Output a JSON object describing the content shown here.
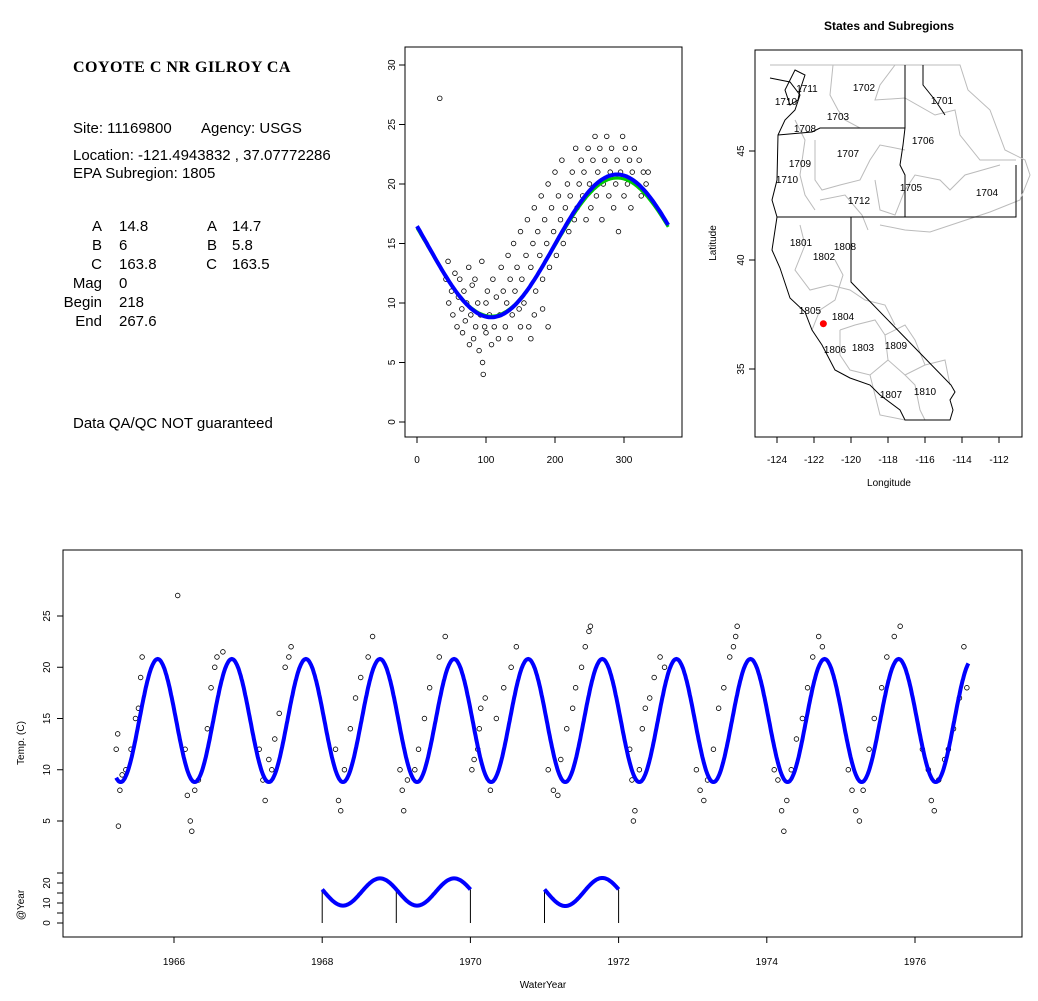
{
  "info": {
    "title": "COYOTE C NR GILROY CA",
    "site": "Site: 11169800",
    "agency": "Agency: USGS",
    "location": "Location: -121.4943832 , 37.07772286",
    "subregion": "EPA Subregion: 1805",
    "params_left": [
      [
        "A",
        "14.8"
      ],
      [
        "B",
        "6"
      ],
      [
        "C",
        "163.8"
      ],
      [
        "Mag",
        "0"
      ],
      [
        "Begin",
        "218"
      ],
      [
        "End",
        "267.6"
      ]
    ],
    "params_right": [
      [
        "A",
        "14.7"
      ],
      [
        "B",
        "5.8"
      ],
      [
        "C",
        "163.5"
      ]
    ],
    "disclaimer": "Data QA/QC NOT guaranteed",
    "disclaimer_color": "#b22222"
  },
  "chart_data": [
    {
      "type": "scatter",
      "name": "day-of-year scatter",
      "xlim": [
        0,
        365
      ],
      "ylim": [
        0,
        30
      ],
      "xticks": [
        "0",
        "100",
        "200",
        "300"
      ],
      "yticks": [
        "0",
        "5",
        "10",
        "15",
        "20",
        "25",
        "30"
      ],
      "fits": [
        {
          "name": "fit1",
          "color": "#0000ff",
          "A": 14.8,
          "B": 6.0,
          "peak_day": 290
        },
        {
          "name": "fit2",
          "color": "#00cc00",
          "A": 14.7,
          "B": 5.8,
          "peak_day": 290
        }
      ],
      "points": [
        [
          33,
          27.2
        ],
        [
          42,
          12
        ],
        [
          45,
          13.5
        ],
        [
          46,
          10
        ],
        [
          50,
          11
        ],
        [
          52,
          9
        ],
        [
          55,
          12.5
        ],
        [
          58,
          8
        ],
        [
          60,
          10.5
        ],
        [
          62,
          12
        ],
        [
          65,
          9.5
        ],
        [
          66,
          7.5
        ],
        [
          68,
          11
        ],
        [
          70,
          8.5
        ],
        [
          72,
          10
        ],
        [
          75,
          13
        ],
        [
          76,
          6.5
        ],
        [
          78,
          9
        ],
        [
          80,
          11.5
        ],
        [
          82,
          7
        ],
        [
          84,
          12
        ],
        [
          85,
          8
        ],
        [
          88,
          10
        ],
        [
          90,
          6
        ],
        [
          92,
          9
        ],
        [
          94,
          13.5
        ],
        [
          95,
          5
        ],
        [
          96,
          4
        ],
        [
          98,
          8
        ],
        [
          100,
          7.5
        ],
        [
          100,
          10
        ],
        [
          102,
          11
        ],
        [
          105,
          9
        ],
        [
          108,
          6.5
        ],
        [
          110,
          12
        ],
        [
          112,
          8
        ],
        [
          115,
          10.5
        ],
        [
          118,
          7
        ],
        [
          120,
          9
        ],
        [
          122,
          13
        ],
        [
          125,
          11
        ],
        [
          128,
          8
        ],
        [
          130,
          10
        ],
        [
          132,
          14
        ],
        [
          135,
          12
        ],
        [
          135,
          7
        ],
        [
          138,
          9
        ],
        [
          140,
          15
        ],
        [
          142,
          11
        ],
        [
          145,
          13
        ],
        [
          148,
          9.5
        ],
        [
          150,
          16
        ],
        [
          150,
          8
        ],
        [
          152,
          12
        ],
        [
          155,
          10
        ],
        [
          158,
          14
        ],
        [
          160,
          17
        ],
        [
          162,
          8
        ],
        [
          165,
          13
        ],
        [
          165,
          7
        ],
        [
          168,
          15
        ],
        [
          170,
          18
        ],
        [
          170,
          9
        ],
        [
          172,
          11
        ],
        [
          175,
          16
        ],
        [
          178,
          14
        ],
        [
          180,
          19
        ],
        [
          182,
          12
        ],
        [
          182,
          9.5
        ],
        [
          185,
          17
        ],
        [
          188,
          15
        ],
        [
          190,
          20
        ],
        [
          190,
          8
        ],
        [
          192,
          13
        ],
        [
          195,
          18
        ],
        [
          198,
          16
        ],
        [
          200,
          21
        ],
        [
          202,
          14
        ],
        [
          205,
          19
        ],
        [
          208,
          17
        ],
        [
          210,
          22
        ],
        [
          212,
          15
        ],
        [
          215,
          18
        ],
        [
          218,
          20
        ],
        [
          220,
          16
        ],
        [
          222,
          19
        ],
        [
          225,
          21
        ],
        [
          228,
          17
        ],
        [
          230,
          23
        ],
        [
          232,
          18
        ],
        [
          235,
          20
        ],
        [
          238,
          22
        ],
        [
          240,
          19
        ],
        [
          242,
          21
        ],
        [
          245,
          17
        ],
        [
          248,
          23
        ],
        [
          250,
          20
        ],
        [
          252,
          18
        ],
        [
          255,
          22
        ],
        [
          258,
          24
        ],
        [
          260,
          19
        ],
        [
          262,
          21
        ],
        [
          265,
          23
        ],
        [
          268,
          17
        ],
        [
          270,
          20
        ],
        [
          272,
          22
        ],
        [
          275,
          24
        ],
        [
          278,
          19
        ],
        [
          280,
          21
        ],
        [
          282,
          23
        ],
        [
          285,
          18
        ],
        [
          288,
          20
        ],
        [
          290,
          22
        ],
        [
          292,
          16
        ],
        [
          295,
          21
        ],
        [
          298,
          24
        ],
        [
          300,
          19
        ],
        [
          302,
          23
        ],
        [
          305,
          20
        ],
        [
          308,
          22
        ],
        [
          310,
          18
        ],
        [
          312,
          21
        ],
        [
          315,
          23
        ],
        [
          318,
          20
        ],
        [
          322,
          22
        ],
        [
          325,
          19
        ],
        [
          328,
          21
        ],
        [
          332,
          20
        ],
        [
          335,
          21
        ]
      ]
    },
    {
      "type": "map",
      "title": "States and Subregions",
      "xlabel": "Longitude",
      "ylabel": "Latitude",
      "xticks": [
        "-124",
        "-122",
        "-120",
        "-118",
        "-116",
        "-114",
        "-112"
      ],
      "yticks": [
        "35",
        "40",
        "45"
      ],
      "site": {
        "lon": -121.4943832,
        "lat": 37.07772286,
        "color": "#ff0000"
      },
      "regions": [
        "1711",
        "1710",
        "1702",
        "1701",
        "1703",
        "1708",
        "1706",
        "1707",
        "1709",
        "1710",
        "1705",
        "1704",
        "1712",
        "1801",
        "1808",
        "1802",
        "1805",
        "1804",
        "1806",
        "1803",
        "1809",
        "1807",
        "1810"
      ]
    },
    {
      "type": "line",
      "name": "time series",
      "xlabel": "WaterYear",
      "ylabel": "Temp. (C)",
      "ylabel2": "@Year",
      "xlim": [
        1964.7,
        1977.3
      ],
      "ylim": [
        3,
        30
      ],
      "xticks": [
        "1966",
        "1968",
        "1970",
        "1972",
        "1974",
        "1976"
      ],
      "yticks": [
        "5",
        "10",
        "15",
        "20",
        "25"
      ],
      "yticks2": [
        "0",
        "10",
        "20"
      ],
      "fit": {
        "color": "#0000ff",
        "A": 14.8,
        "B": 6.0,
        "peak_frac": 0.78,
        "start": 1965.22,
        "end": 1976.72
      },
      "annual_segments": [
        {
          "from": 1968,
          "to": 1970,
          "A": 15.5,
          "B": 6.8
        },
        {
          "from": 1971,
          "to": 1972,
          "A": 15.5,
          "B": 7.0
        }
      ],
      "annual_markers": [
        1968,
        1969,
        1970,
        1971,
        1972
      ],
      "points": [
        [
          1965.22,
          12
        ],
        [
          1965.24,
          13.5
        ],
        [
          1965.25,
          4.5
        ],
        [
          1965.27,
          8
        ],
        [
          1965.3,
          9.5
        ],
        [
          1965.35,
          10
        ],
        [
          1965.42,
          12
        ],
        [
          1965.48,
          15
        ],
        [
          1965.52,
          16
        ],
        [
          1965.55,
          19
        ],
        [
          1965.57,
          21
        ],
        [
          1966.05,
          27
        ],
        [
          1966.15,
          12
        ],
        [
          1966.18,
          7.5
        ],
        [
          1966.22,
          5
        ],
        [
          1966.24,
          4
        ],
        [
          1966.28,
          8
        ],
        [
          1966.33,
          9
        ],
        [
          1966.45,
          14
        ],
        [
          1966.5,
          18
        ],
        [
          1966.55,
          20
        ],
        [
          1966.58,
          21
        ],
        [
          1966.66,
          21.5
        ],
        [
          1967.15,
          12
        ],
        [
          1967.2,
          9
        ],
        [
          1967.23,
          7
        ],
        [
          1967.28,
          11
        ],
        [
          1967.32,
          10
        ],
        [
          1967.36,
          13
        ],
        [
          1967.42,
          15.5
        ],
        [
          1967.5,
          20
        ],
        [
          1967.55,
          21
        ],
        [
          1967.58,
          22
        ],
        [
          1968.18,
          12
        ],
        [
          1968.22,
          7
        ],
        [
          1968.25,
          6
        ],
        [
          1968.3,
          10
        ],
        [
          1968.38,
          14
        ],
        [
          1968.45,
          17
        ],
        [
          1968.52,
          19
        ],
        [
          1968.62,
          21
        ],
        [
          1968.68,
          23
        ],
        [
          1969.05,
          10
        ],
        [
          1969.08,
          8
        ],
        [
          1969.1,
          6
        ],
        [
          1969.15,
          9
        ],
        [
          1969.25,
          10
        ],
        [
          1969.3,
          12
        ],
        [
          1969.38,
          15
        ],
        [
          1969.45,
          18
        ],
        [
          1969.58,
          21
        ],
        [
          1969.66,
          23
        ],
        [
          1970.02,
          10
        ],
        [
          1970.05,
          11
        ],
        [
          1970.1,
          12
        ],
        [
          1970.12,
          14
        ],
        [
          1970.14,
          16
        ],
        [
          1970.2,
          17
        ],
        [
          1970.27,
          8
        ],
        [
          1970.35,
          15
        ],
        [
          1970.45,
          18
        ],
        [
          1970.55,
          20
        ],
        [
          1970.62,
          22
        ],
        [
          1971.05,
          10
        ],
        [
          1971.12,
          8
        ],
        [
          1971.18,
          7.5
        ],
        [
          1971.22,
          11
        ],
        [
          1971.3,
          14
        ],
        [
          1971.38,
          16
        ],
        [
          1971.42,
          18
        ],
        [
          1971.5,
          20
        ],
        [
          1971.55,
          22
        ],
        [
          1971.6,
          23.5
        ],
        [
          1971.62,
          24
        ],
        [
          1972.15,
          12
        ],
        [
          1972.18,
          9
        ],
        [
          1972.2,
          5
        ],
        [
          1972.22,
          6
        ],
        [
          1972.28,
          10
        ],
        [
          1972.32,
          14
        ],
        [
          1972.36,
          16
        ],
        [
          1972.42,
          17
        ],
        [
          1972.48,
          19
        ],
        [
          1972.56,
          21
        ],
        [
          1972.62,
          20
        ],
        [
          1973.05,
          10
        ],
        [
          1973.1,
          8
        ],
        [
          1973.15,
          7
        ],
        [
          1973.2,
          9
        ],
        [
          1973.28,
          12
        ],
        [
          1973.35,
          16
        ],
        [
          1973.42,
          18
        ],
        [
          1973.5,
          21
        ],
        [
          1973.55,
          22
        ],
        [
          1973.58,
          23
        ],
        [
          1973.6,
          24
        ],
        [
          1974.1,
          10
        ],
        [
          1974.15,
          9
        ],
        [
          1974.2,
          6
        ],
        [
          1974.23,
          4
        ],
        [
          1974.27,
          7
        ],
        [
          1974.33,
          10
        ],
        [
          1974.4,
          13
        ],
        [
          1974.48,
          15
        ],
        [
          1974.55,
          18
        ],
        [
          1974.62,
          21
        ],
        [
          1974.7,
          23
        ],
        [
          1974.75,
          22
        ],
        [
          1975.1,
          10
        ],
        [
          1975.15,
          8
        ],
        [
          1975.2,
          6
        ],
        [
          1975.25,
          5
        ],
        [
          1975.3,
          8
        ],
        [
          1975.38,
          12
        ],
        [
          1975.45,
          15
        ],
        [
          1975.55,
          18
        ],
        [
          1975.62,
          21
        ],
        [
          1975.72,
          23
        ],
        [
          1975.8,
          24
        ],
        [
          1976.1,
          12
        ],
        [
          1976.18,
          10
        ],
        [
          1976.22,
          7
        ],
        [
          1976.26,
          6
        ],
        [
          1976.32,
          9
        ],
        [
          1976.4,
          11
        ],
        [
          1976.45,
          12
        ],
        [
          1976.52,
          14
        ],
        [
          1976.6,
          17
        ],
        [
          1976.66,
          22
        ],
        [
          1976.7,
          18
        ]
      ]
    }
  ]
}
